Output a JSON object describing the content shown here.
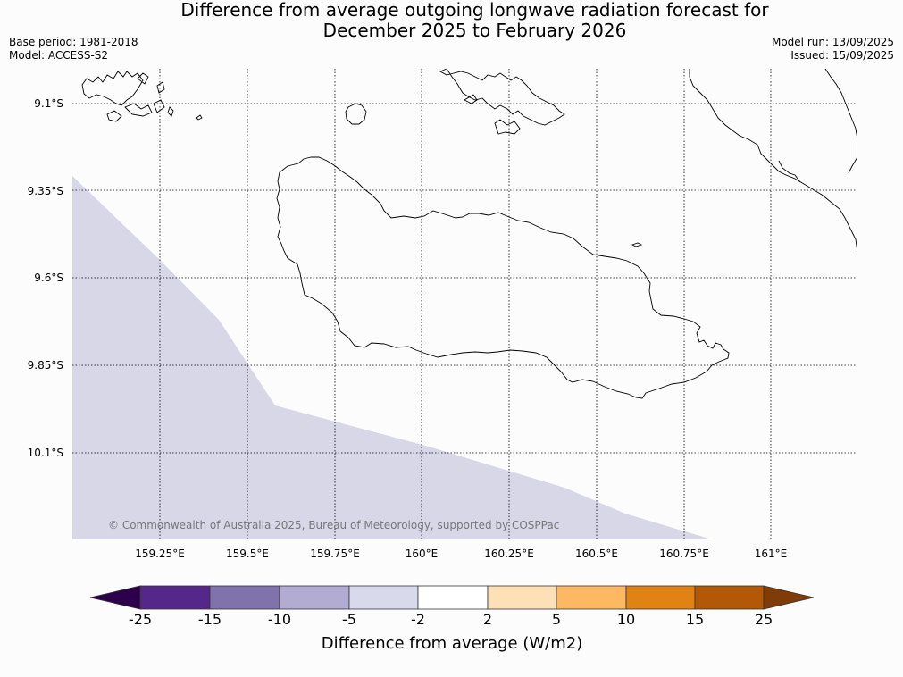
{
  "title": {
    "line1": "Difference from average outgoing longwave radiation forecast for",
    "line2": "December 2025 to February 2026"
  },
  "meta_left": {
    "base_period": "Base period: 1981-2018",
    "model": "Model: ACCESS-S2"
  },
  "meta_right": {
    "model_run": "Model run: 13/09/2025",
    "issued": "Issued: 15/09/2025"
  },
  "map": {
    "lat_labels": [
      "9.1°S",
      "9.35°S",
      "9.6°S",
      "9.85°S",
      "10.1°S"
    ],
    "lon_labels": [
      "159.25°E",
      "159.5°E",
      "159.75°E",
      "160°E",
      "160.25°E",
      "160.5°E",
      "160.75°E",
      "161°E"
    ],
    "copyright": "© Commonwealth of Australia 2025, Bureau of Meteorology, supported by COSPPac",
    "shaded_category": "-5 to -2",
    "shaded_color": "#d7d7e8"
  },
  "colorbar": {
    "ticks": [
      "-25",
      "-15",
      "-10",
      "-5",
      "-2",
      "2",
      "5",
      "10",
      "15",
      "25"
    ],
    "colors": [
      "#2d004b",
      "#542788",
      "#8073ac",
      "#b2abd2",
      "#d8daeb",
      "#ffffff",
      "#fee0b6",
      "#fdb863",
      "#e08214",
      "#b35806",
      "#7f3b08"
    ],
    "title": "Difference from average (W/m2)"
  }
}
